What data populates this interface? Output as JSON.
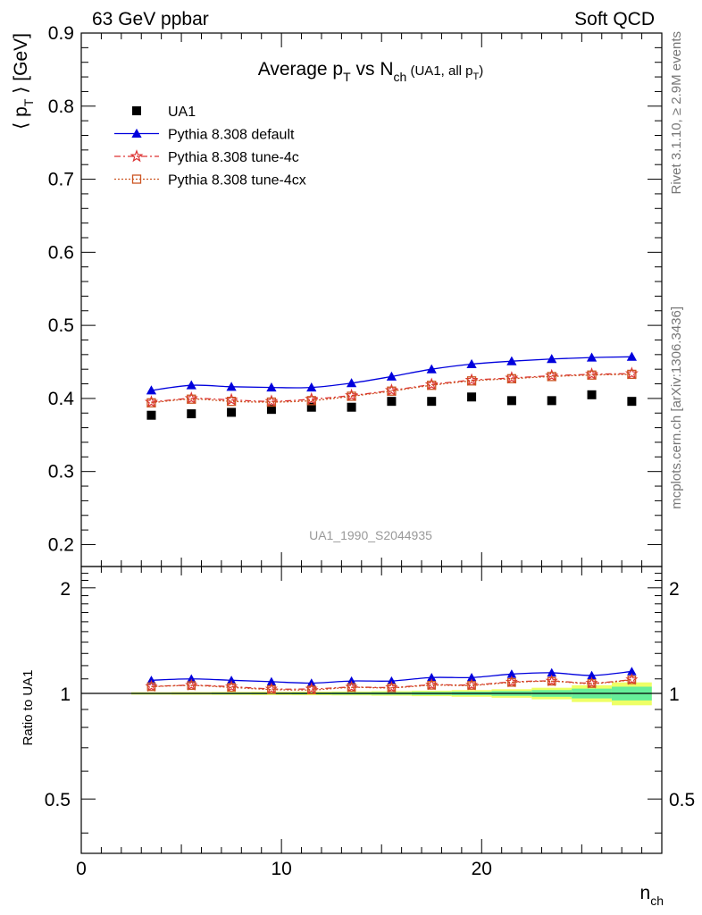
{
  "header": {
    "left": "63 GeV ppbar",
    "right": "Soft QCD"
  },
  "side_text": {
    "rivet": "Rivet 3.1.10, ≥ 2.9M events",
    "mcplots": "mcplots.cern.ch [arXiv:1306.3436]"
  },
  "chart_data": [
    {
      "type": "line",
      "title": "Average p_T vs N_ch (UA1, all p_T)",
      "title_parts": {
        "main": "Average p",
        "main_sub": "T",
        "vs": " vs N",
        "vs_sub": "ch",
        "paren": " (UA1, all p",
        "paren_sub": "T",
        "paren_close": ")"
      },
      "ylabel": "⟨ p_T ⟩ [GeV]",
      "ylabel_parts": {
        "open": "⟨ p",
        "sub": "T",
        "close": " ⟩ [GeV]"
      },
      "xlabel": "",
      "analysis_tag": "UA1_1990_S2044935",
      "xlim": [
        0,
        29
      ],
      "ylim": [
        0.17,
        0.9
      ],
      "yticks": [
        0.2,
        0.3,
        0.4,
        0.5,
        0.6,
        0.7,
        0.8,
        0.9
      ],
      "ytick_labels": [
        "0.2",
        "0.3",
        "0.4",
        "0.5",
        "0.6",
        "0.7",
        "0.8",
        "0.9"
      ],
      "legend_position": "top-left",
      "x": [
        3.5,
        5.5,
        7.5,
        9.5,
        11.5,
        13.5,
        15.5,
        17.5,
        19.5,
        21.5,
        23.5,
        25.5,
        27.5
      ],
      "series": [
        {
          "name": "UA1",
          "color": "#000000",
          "marker": "square",
          "line": "none",
          "values": [
            0.377,
            0.379,
            0.381,
            0.385,
            0.388,
            0.388,
            0.396,
            0.396,
            0.402,
            0.397,
            0.397,
            0.405,
            0.396
          ]
        },
        {
          "name": "Pythia 8.308 default",
          "color": "#0000dd",
          "marker": "triangle",
          "line": "solid",
          "values": [
            0.411,
            0.418,
            0.416,
            0.415,
            0.415,
            0.421,
            0.43,
            0.44,
            0.447,
            0.451,
            0.454,
            0.456,
            0.457
          ]
        },
        {
          "name": "Pythia 8.308 tune-4c",
          "color": "#dd3333",
          "marker": "star",
          "line": "dashdot",
          "values": [
            0.395,
            0.4,
            0.398,
            0.396,
            0.399,
            0.404,
            0.411,
            0.419,
            0.425,
            0.428,
            0.431,
            0.433,
            0.434
          ]
        },
        {
          "name": "Pythia 8.308 tune-4cx",
          "color": "#cc5522",
          "marker": "open-square",
          "line": "dotted",
          "values": [
            0.394,
            0.399,
            0.396,
            0.395,
            0.397,
            0.403,
            0.41,
            0.418,
            0.424,
            0.427,
            0.43,
            0.432,
            0.433
          ]
        }
      ]
    },
    {
      "type": "line",
      "title": "",
      "ylabel": "Ratio to UA1",
      "xlabel": "n_ch",
      "xlabel_parts": {
        "main": "n",
        "sub": "ch"
      },
      "xlim": [
        0,
        29
      ],
      "xticks": [
        0,
        10,
        20
      ],
      "xtick_labels": [
        "0",
        "10",
        "20"
      ],
      "ylim": [
        0.35,
        2.3
      ],
      "yticks": [
        0.5,
        1,
        2
      ],
      "ytick_labels": [
        "0.5",
        "1",
        "2"
      ],
      "reference_line": 1,
      "uncertainty_band": {
        "x_edges": [
          2.5,
          4.5,
          6.5,
          8.5,
          10.5,
          12.5,
          14.5,
          16.5,
          18.5,
          20.5,
          22.5,
          24.5,
          26.5,
          28.5
        ],
        "stat_half_width": [
          0.004,
          0.004,
          0.005,
          0.005,
          0.006,
          0.007,
          0.008,
          0.01,
          0.012,
          0.016,
          0.022,
          0.032,
          0.045
        ],
        "total_half_width": [
          0.008,
          0.009,
          0.01,
          0.011,
          0.012,
          0.013,
          0.015,
          0.018,
          0.022,
          0.028,
          0.038,
          0.055,
          0.075
        ],
        "stat_color": "#66ee99",
        "total_color": "#eeff66"
      },
      "x": [
        3.5,
        5.5,
        7.5,
        9.5,
        11.5,
        13.5,
        15.5,
        17.5,
        19.5,
        21.5,
        23.5,
        25.5,
        27.5
      ],
      "series": [
        {
          "name": "Pythia 8.308 default",
          "color": "#0000dd",
          "marker": "triangle",
          "line": "solid",
          "values": [
            1.09,
            1.1,
            1.09,
            1.08,
            1.07,
            1.085,
            1.085,
            1.11,
            1.11,
            1.135,
            1.145,
            1.125,
            1.155
          ]
        },
        {
          "name": "Pythia 8.308 tune-4c",
          "color": "#dd3333",
          "marker": "star",
          "line": "dashdot",
          "values": [
            1.047,
            1.055,
            1.045,
            1.03,
            1.03,
            1.042,
            1.04,
            1.058,
            1.057,
            1.078,
            1.085,
            1.07,
            1.095
          ]
        },
        {
          "name": "Pythia 8.308 tune-4cx",
          "color": "#cc5522",
          "marker": "open-square",
          "line": "dotted",
          "values": [
            1.045,
            1.053,
            1.04,
            1.026,
            1.023,
            1.04,
            1.037,
            1.055,
            1.054,
            1.075,
            1.083,
            1.067,
            1.093
          ]
        }
      ]
    }
  ]
}
